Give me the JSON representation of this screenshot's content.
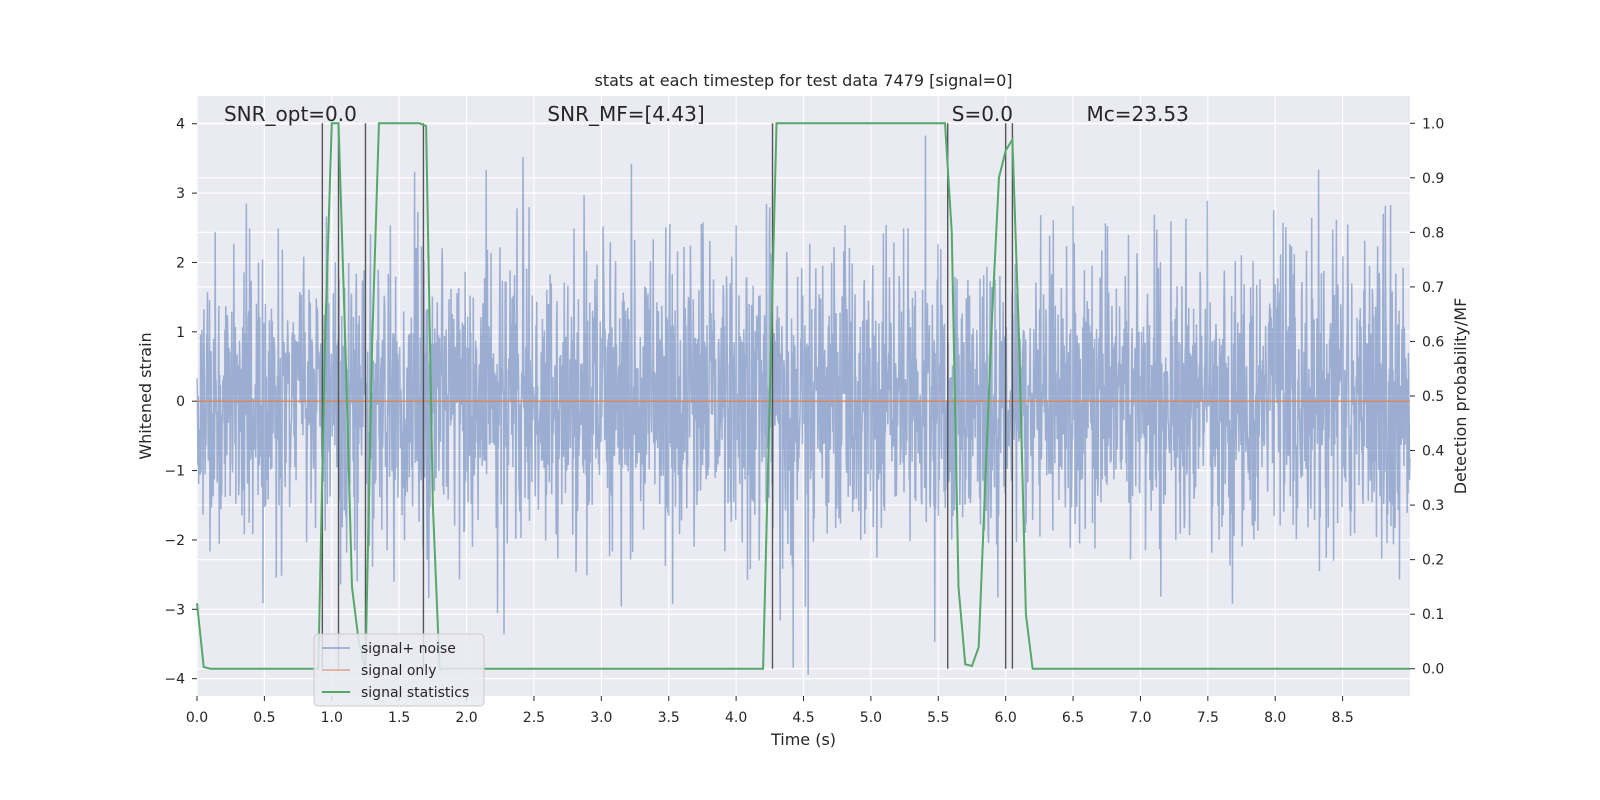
{
  "chart_data": {
    "type": "line",
    "title": "stats at each timestep for test data 7479 [signal=0]",
    "xlabel": "Time (s)",
    "ylabel_left": "Whitened strain",
    "ylabel_right": "Detection probability/MF",
    "xlim": [
      0.0,
      9.0
    ],
    "ylim_left": [
      -4.25,
      4.4
    ],
    "ylim_right": [
      -0.05,
      1.05
    ],
    "x_ticks": [
      "0.0",
      "0.5",
      "1.0",
      "1.5",
      "2.0",
      "2.5",
      "3.0",
      "3.5",
      "4.0",
      "4.5",
      "5.0",
      "5.5",
      "6.0",
      "6.5",
      "7.0",
      "7.5",
      "8.0",
      "8.5"
    ],
    "y_ticks_left": [
      "−4",
      "−3",
      "−2",
      "−1",
      "0",
      "1",
      "2",
      "3",
      "4"
    ],
    "y_ticks_right": [
      "0.0",
      "0.1",
      "0.2",
      "0.3",
      "0.4",
      "0.5",
      "0.6",
      "0.7",
      "0.8",
      "0.9",
      "1.0"
    ],
    "grid": true,
    "legend_position": "lower-left",
    "annotations": [
      {
        "name": "snr-opt",
        "label": "SNR_opt=0.0",
        "x": 0.2
      },
      {
        "name": "snr-mf",
        "label": "SNR_MF=[4.43]",
        "x": 2.6
      },
      {
        "name": "s-value",
        "label": "S=0.0",
        "x": 5.6
      },
      {
        "name": "mc-value",
        "label": "Mc=23.53",
        "x": 6.6
      }
    ],
    "series": [
      {
        "name": "signal+ noise",
        "color": "#4c72b0",
        "axis": "left",
        "description": "whitened noisy strain, amplitude mostly within ±2.5, peaks about ±4"
      },
      {
        "name": "signal only",
        "color": "#dd8452",
        "axis": "left",
        "x": [
          0.0,
          9.0
        ],
        "y": [
          0.0,
          0.0
        ]
      },
      {
        "name": "signal statistics",
        "color": "#55a868",
        "axis": "right",
        "x": [
          0.0,
          0.05,
          0.1,
          0.9,
          0.95,
          1.0,
          1.05,
          1.1,
          1.15,
          1.2,
          1.25,
          1.3,
          1.35,
          1.65,
          1.7,
          1.75,
          1.8,
          4.2,
          4.25,
          4.3,
          5.55,
          5.6,
          5.65,
          5.7,
          5.75,
          5.8,
          5.85,
          5.9,
          5.95,
          6.0,
          6.05,
          6.1,
          6.15,
          6.2,
          6.25,
          9.0
        ],
        "y": [
          0.12,
          0.003,
          0.0,
          0.0,
          0.6,
          1.0,
          1.0,
          0.6,
          0.15,
          0.05,
          0.0,
          0.6,
          1.0,
          1.0,
          0.995,
          0.3,
          0.0,
          0.0,
          0.5,
          1.0,
          1.0,
          0.8,
          0.15,
          0.008,
          0.005,
          0.04,
          0.35,
          0.65,
          0.9,
          0.95,
          0.97,
          0.6,
          0.1,
          0.0,
          0.0,
          0.0
        ]
      }
    ],
    "vertical_markers": [
      0.93,
      1.05,
      1.25,
      1.68,
      4.27,
      5.57,
      6.0,
      6.05
    ]
  }
}
